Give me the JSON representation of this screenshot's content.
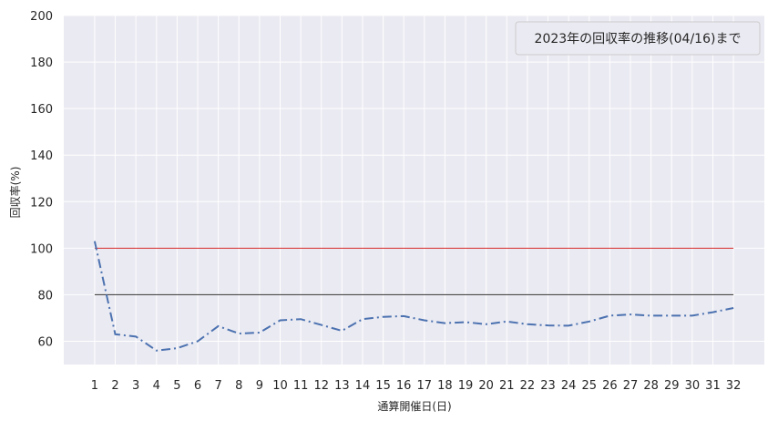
{
  "chart_data": {
    "type": "line",
    "xlabel": "通算開催日(日)",
    "ylabel": "回収率(%)",
    "ylim": [
      50,
      200
    ],
    "yticks": [
      60,
      80,
      100,
      120,
      140,
      160,
      180,
      200
    ],
    "xlim": [
      -0.5,
      33.5
    ],
    "x": [
      1,
      2,
      3,
      4,
      5,
      6,
      7,
      8,
      9,
      10,
      11,
      12,
      13,
      14,
      15,
      16,
      17,
      18,
      19,
      20,
      21,
      22,
      23,
      24,
      25,
      26,
      27,
      28,
      29,
      30,
      31,
      32
    ],
    "series": [
      {
        "name": "2023年の回収率の推移(04/16)まで",
        "values": [
          103,
          63,
          62,
          56,
          57,
          60,
          66.5,
          63.3,
          63.7,
          69,
          69.5,
          67,
          64.5,
          69.5,
          70.5,
          70.8,
          69,
          67.8,
          68.2,
          67.3,
          68.5,
          67.3,
          66.8,
          66.7,
          68.5,
          71,
          71.5,
          71,
          71,
          71,
          72.5,
          74.3
        ],
        "color": "#4c72b0",
        "style": "dashdot"
      }
    ],
    "reference_lines": [
      {
        "y": 100,
        "color": "#d62728"
      },
      {
        "y": 80,
        "color": "#333333"
      }
    ],
    "grid": true,
    "background": "#eaeaf2",
    "legend_position": "top-right"
  }
}
